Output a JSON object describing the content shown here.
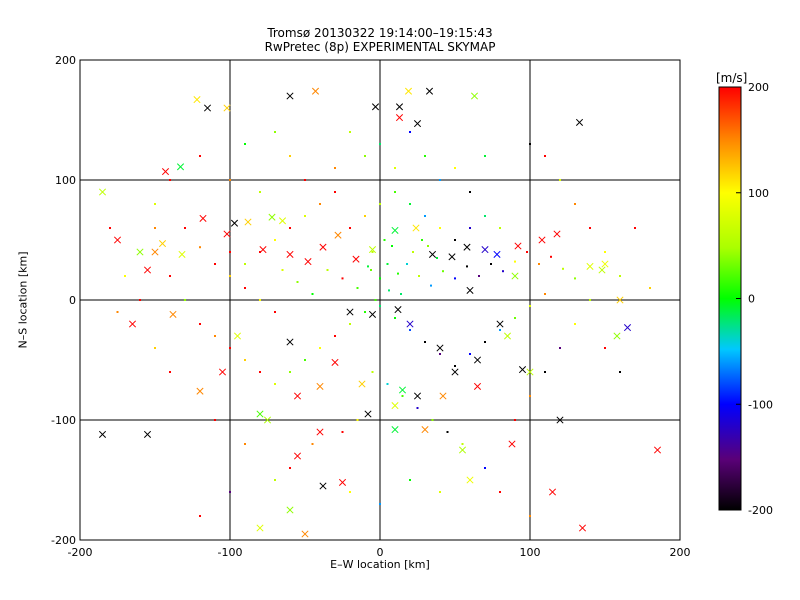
{
  "chart_data": {
    "type": "scatter",
    "title": "Tromsø 20130322 19:14:00–19:15:43",
    "subtitle": "RwPretec (8p) EXPERIMENTAL SKYMAP",
    "xlabel": "E–W location [km]",
    "ylabel": "N–S location [km]",
    "xlim": [
      -200,
      200
    ],
    "ylim": [
      -200,
      200
    ],
    "xticks": [
      -200,
      -100,
      0,
      100,
      200
    ],
    "yticks": [
      -200,
      -100,
      0,
      100,
      200
    ],
    "grid": true,
    "colorbar": {
      "label": "[m/s]",
      "range": [
        -200,
        200
      ],
      "ticks": [
        200,
        100,
        0,
        -100,
        -200
      ],
      "colormap": "rainbow (black → purple → blue → cyan → green → yellow → red)",
      "placement": "right"
    },
    "marker_types": [
      "dot",
      "x"
    ],
    "series": [
      {
        "marker": "x",
        "points": [
          [
            -185,
            90,
            60
          ],
          [
            -143,
            107,
            200
          ],
          [
            -133,
            111,
            -10
          ],
          [
            -122,
            167,
            110
          ],
          [
            -102,
            160,
            120
          ],
          [
            -60,
            170,
            -200
          ],
          [
            -43,
            174,
            150
          ],
          [
            13,
            161,
            -200
          ],
          [
            19,
            174,
            110
          ],
          [
            33,
            174,
            -200
          ],
          [
            63,
            170,
            40
          ],
          [
            25,
            147,
            -200
          ],
          [
            13,
            152,
            200
          ],
          [
            -3,
            161,
            -200
          ],
          [
            133,
            148,
            -200
          ],
          [
            -175,
            50,
            200
          ],
          [
            -150,
            40,
            150
          ],
          [
            -145,
            47,
            120
          ],
          [
            -132,
            38,
            80
          ],
          [
            -155,
            25,
            200
          ],
          [
            -160,
            40,
            40
          ],
          [
            -97,
            64,
            -200
          ],
          [
            -118,
            68,
            200
          ],
          [
            -102,
            55,
            200
          ],
          [
            -88,
            65,
            120
          ],
          [
            -72,
            69,
            40
          ],
          [
            -65,
            66,
            80
          ],
          [
            -78,
            42,
            200
          ],
          [
            -60,
            38,
            200
          ],
          [
            -48,
            32,
            200
          ],
          [
            -38,
            44,
            200
          ],
          [
            -28,
            54,
            150
          ],
          [
            -16,
            34,
            200
          ],
          [
            -5,
            42,
            60
          ],
          [
            10,
            58,
            -10
          ],
          [
            24,
            60,
            110
          ],
          [
            35,
            38,
            -200
          ],
          [
            48,
            36,
            -200
          ],
          [
            58,
            44,
            -200
          ],
          [
            70,
            42,
            -120
          ],
          [
            78,
            38,
            -100
          ],
          [
            92,
            45,
            200
          ],
          [
            108,
            50,
            200
          ],
          [
            118,
            55,
            200
          ],
          [
            150,
            30,
            90
          ],
          [
            140,
            28,
            80
          ],
          [
            90,
            20,
            40
          ],
          [
            60,
            8,
            -200
          ],
          [
            -20,
            -10,
            -200
          ],
          [
            -5,
            -12,
            -200
          ],
          [
            12,
            -8,
            -200
          ],
          [
            20,
            -20,
            -120
          ],
          [
            40,
            -40,
            -200
          ],
          [
            50,
            -60,
            -200
          ],
          [
            65,
            -50,
            -200
          ],
          [
            80,
            -20,
            -200
          ],
          [
            95,
            -58,
            -200
          ],
          [
            -60,
            -35,
            -200
          ],
          [
            -30,
            -52,
            200
          ],
          [
            -40,
            -72,
            150
          ],
          [
            -55,
            -80,
            200
          ],
          [
            -12,
            -70,
            120
          ],
          [
            -8,
            -95,
            -200
          ],
          [
            10,
            -88,
            80
          ],
          [
            15,
            -75,
            -10
          ],
          [
            25,
            -80,
            -200
          ],
          [
            42,
            -80,
            150
          ],
          [
            65,
            -72,
            200
          ],
          [
            -80,
            -95,
            20
          ],
          [
            -105,
            -60,
            200
          ],
          [
            -120,
            -76,
            150
          ],
          [
            -138,
            -12,
            150
          ],
          [
            -165,
            -20,
            200
          ],
          [
            -95,
            -30,
            80
          ],
          [
            160,
            0,
            120
          ],
          [
            148,
            25,
            60
          ],
          [
            165,
            -23,
            -120
          ],
          [
            158,
            -30,
            40
          ],
          [
            100,
            -60,
            60
          ],
          [
            85,
            -30,
            60
          ],
          [
            -185,
            -112,
            -200
          ],
          [
            -155,
            -112,
            -200
          ],
          [
            -75,
            -100,
            50
          ],
          [
            -40,
            -110,
            200
          ],
          [
            -55,
            -130,
            200
          ],
          [
            -25,
            -152,
            200
          ],
          [
            -38,
            -155,
            -200
          ],
          [
            -60,
            -175,
            40
          ],
          [
            -80,
            -190,
            80
          ],
          [
            -50,
            -195,
            150
          ],
          [
            120,
            -100,
            -200
          ],
          [
            115,
            -160,
            200
          ],
          [
            88,
            -120,
            200
          ],
          [
            135,
            -190,
            200
          ],
          [
            185,
            -125,
            200
          ],
          [
            10,
            -108,
            -10
          ],
          [
            30,
            -108,
            150
          ],
          [
            55,
            -125,
            50
          ],
          [
            60,
            -150,
            90
          ],
          [
            -115,
            160,
            -200
          ]
        ]
      },
      {
        "marker": "dot",
        "points": [
          [
            -130,
            60,
            200
          ],
          [
            -120,
            44,
            150
          ],
          [
            -110,
            30,
            200
          ],
          [
            -100,
            20,
            120
          ],
          [
            -90,
            10,
            200
          ],
          [
            -80,
            0,
            100
          ],
          [
            -70,
            -10,
            200
          ],
          [
            -65,
            25,
            80
          ],
          [
            -55,
            15,
            40
          ],
          [
            -45,
            5,
            0
          ],
          [
            -35,
            25,
            60
          ],
          [
            -25,
            18,
            200
          ],
          [
            -15,
            10,
            20
          ],
          [
            -8,
            28,
            -10
          ],
          [
            0,
            18,
            0
          ],
          [
            6,
            8,
            -20
          ],
          [
            12,
            22,
            10
          ],
          [
            18,
            30,
            -40
          ],
          [
            26,
            20,
            60
          ],
          [
            34,
            12,
            -60
          ],
          [
            42,
            24,
            30
          ],
          [
            50,
            18,
            -100
          ],
          [
            58,
            28,
            -200
          ],
          [
            66,
            20,
            -150
          ],
          [
            74,
            30,
            -200
          ],
          [
            82,
            24,
            -120
          ],
          [
            90,
            32,
            100
          ],
          [
            98,
            40,
            200
          ],
          [
            106,
            30,
            150
          ],
          [
            114,
            36,
            200
          ],
          [
            122,
            26,
            60
          ],
          [
            130,
            18,
            40
          ],
          [
            -120,
            -20,
            200
          ],
          [
            -110,
            -30,
            150
          ],
          [
            -100,
            -40,
            200
          ],
          [
            -90,
            -50,
            120
          ],
          [
            -80,
            -60,
            200
          ],
          [
            -70,
            -70,
            80
          ],
          [
            -60,
            -60,
            40
          ],
          [
            -50,
            -50,
            20
          ],
          [
            -40,
            -40,
            100
          ],
          [
            -30,
            -30,
            200
          ],
          [
            -20,
            -20,
            60
          ],
          [
            -10,
            -10,
            10
          ],
          [
            0,
            -5,
            -20
          ],
          [
            10,
            -15,
            0
          ],
          [
            20,
            -25,
            -80
          ],
          [
            30,
            -35,
            -200
          ],
          [
            40,
            -45,
            -150
          ],
          [
            50,
            -55,
            -200
          ],
          [
            60,
            -45,
            -100
          ],
          [
            70,
            -35,
            -200
          ],
          [
            80,
            -25,
            -60
          ],
          [
            90,
            -15,
            30
          ],
          [
            100,
            -5,
            80
          ],
          [
            110,
            5,
            150
          ],
          [
            -20,
            60,
            200
          ],
          [
            -10,
            70,
            120
          ],
          [
            0,
            80,
            60
          ],
          [
            10,
            90,
            20
          ],
          [
            20,
            80,
            -10
          ],
          [
            30,
            70,
            -60
          ],
          [
            40,
            60,
            100
          ],
          [
            50,
            50,
            -200
          ],
          [
            60,
            60,
            -120
          ],
          [
            70,
            70,
            -20
          ],
          [
            80,
            60,
            60
          ],
          [
            -40,
            80,
            150
          ],
          [
            -30,
            90,
            200
          ],
          [
            -50,
            70,
            80
          ],
          [
            -60,
            60,
            200
          ],
          [
            -70,
            50,
            100
          ],
          [
            -80,
            40,
            200
          ],
          [
            -90,
            30,
            60
          ],
          [
            -100,
            40,
            200
          ],
          [
            -10,
            120,
            40
          ],
          [
            0,
            130,
            -20
          ],
          [
            10,
            110,
            80
          ],
          [
            20,
            140,
            -100
          ],
          [
            30,
            120,
            10
          ],
          [
            -20,
            140,
            60
          ],
          [
            -30,
            110,
            150
          ],
          [
            40,
            100,
            -60
          ],
          [
            50,
            110,
            100
          ],
          [
            60,
            90,
            -200
          ],
          [
            -50,
            100,
            200
          ],
          [
            -60,
            120,
            120
          ],
          [
            70,
            120,
            -10
          ],
          [
            -5,
            -60,
            60
          ],
          [
            5,
            -70,
            -40
          ],
          [
            15,
            -80,
            20
          ],
          [
            25,
            -90,
            -120
          ],
          [
            -15,
            -100,
            100
          ],
          [
            -25,
            -110,
            200
          ],
          [
            35,
            -100,
            40
          ],
          [
            45,
            -110,
            -200
          ],
          [
            -45,
            -120,
            150
          ],
          [
            55,
            -120,
            60
          ],
          [
            -60,
            -140,
            200
          ],
          [
            70,
            -140,
            -100
          ],
          [
            90,
            -100,
            200
          ],
          [
            100,
            -80,
            150
          ],
          [
            110,
            -60,
            -200
          ],
          [
            120,
            -40,
            -150
          ],
          [
            130,
            -20,
            100
          ],
          [
            140,
            0,
            60
          ],
          [
            150,
            -40,
            200
          ],
          [
            -140,
            -60,
            200
          ],
          [
            -150,
            -40,
            120
          ],
          [
            -160,
            0,
            200
          ],
          [
            -170,
            20,
            100
          ],
          [
            -130,
            0,
            40
          ],
          [
            -140,
            20,
            200
          ],
          [
            -150,
            60,
            150
          ],
          [
            -140,
            100,
            200
          ],
          [
            -150,
            80,
            80
          ],
          [
            -120,
            120,
            200
          ],
          [
            -100,
            100,
            150
          ],
          [
            -80,
            90,
            60
          ],
          [
            -90,
            130,
            0
          ],
          [
            -70,
            140,
            40
          ],
          [
            100,
            130,
            -200
          ],
          [
            110,
            120,
            200
          ],
          [
            120,
            100,
            80
          ],
          [
            130,
            80,
            150
          ],
          [
            140,
            60,
            200
          ],
          [
            150,
            40,
            100
          ],
          [
            160,
            20,
            60
          ],
          [
            -110,
            -100,
            200
          ],
          [
            -90,
            -120,
            150
          ],
          [
            -70,
            -150,
            60
          ],
          [
            -20,
            -160,
            100
          ],
          [
            0,
            -170,
            -60
          ],
          [
            20,
            -150,
            0
          ],
          [
            40,
            -160,
            80
          ],
          [
            80,
            -160,
            200
          ],
          [
            100,
            -180,
            150
          ],
          [
            -100,
            -160,
            -150
          ],
          [
            -120,
            -180,
            200
          ],
          [
            160,
            -60,
            -200
          ],
          [
            170,
            60,
            200
          ],
          [
            180,
            10,
            120
          ],
          [
            -180,
            60,
            200
          ],
          [
            -175,
            -10,
            150
          ],
          [
            -5,
            40,
            60
          ],
          [
            5,
            30,
            -10
          ],
          [
            -3,
            0,
            20
          ],
          [
            3,
            50,
            10
          ],
          [
            8,
            45,
            0
          ],
          [
            -6,
            25,
            30
          ],
          [
            14,
            5,
            -20
          ],
          [
            22,
            40,
            60
          ],
          [
            28,
            50,
            10
          ],
          [
            32,
            45,
            40
          ],
          [
            38,
            35,
            -10
          ]
        ]
      }
    ]
  }
}
